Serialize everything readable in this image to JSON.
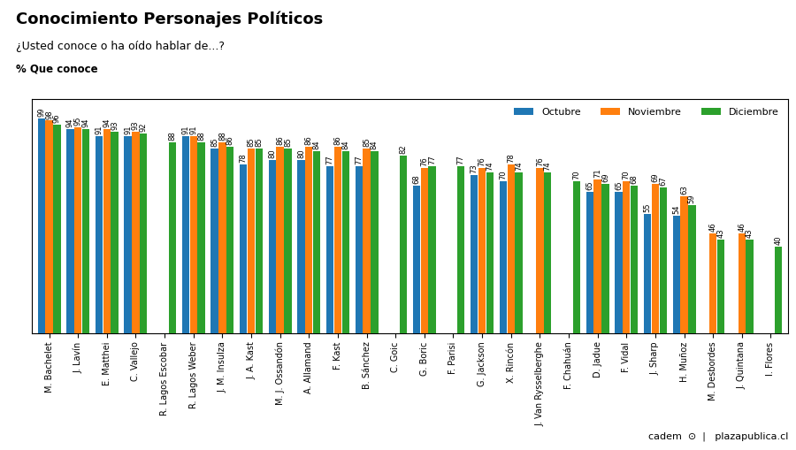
{
  "chart_data": {
    "type": "bar",
    "title": "Conocimiento Personajes Políticos",
    "subtitle": "¿Usted conoce o ha oído hablar de...?",
    "annotations": [
      "% Que conoce",
      "cadem",
      "⊙",
      "|   plazapublica.cl"
    ],
    "categories": [
      "M. Bachelet",
      "J. Lavín",
      "E. Matthei",
      "C. Vallejo",
      "R. Lagos Escobar",
      "R. Lagos Weber",
      "J. M. Insulza",
      "J. A. Kast",
      "M. J. Ossandón",
      "A. Allamand",
      "F. Kast",
      "B. Sánchez",
      "C. Goic",
      "G. Boric",
      "F. Parisi",
      "G. Jackson",
      "X. Rincón",
      "J. Van Rysselberghe",
      "F. Chahuán",
      "D. Jadue",
      "F. Vidal",
      "J. Sharp",
      "H. Muñoz",
      "M. Desbordes",
      "J. Quintana",
      "I. Flores"
    ],
    "series": [
      {
        "name": "Octubre",
        "values": [
          99,
          94,
          91,
          91,
          null,
          91,
          85,
          78,
          80,
          80,
          77,
          77,
          null,
          68,
          null,
          73,
          70,
          null,
          null,
          65,
          65,
          55,
          54,
          null,
          null,
          null
        ]
      },
      {
        "name": "Noviembre",
        "values": [
          98,
          95,
          94,
          93,
          null,
          91,
          88,
          85,
          86,
          86,
          86,
          85,
          null,
          76,
          null,
          76,
          78,
          76,
          null,
          71,
          70,
          69,
          63,
          46,
          46,
          null
        ]
      },
      {
        "name": "Diciembre",
        "values": [
          96,
          94,
          93,
          92,
          88,
          88,
          86,
          85,
          85,
          84,
          84,
          84,
          82,
          77,
          77,
          74,
          74,
          74,
          70,
          69,
          68,
          67,
          59,
          43,
          43,
          40
        ]
      }
    ],
    "ylim": [
      0,
      108
    ],
    "tick_labels": "x",
    "data_labels": true,
    "legend": "upper right",
    "grid": false
  }
}
